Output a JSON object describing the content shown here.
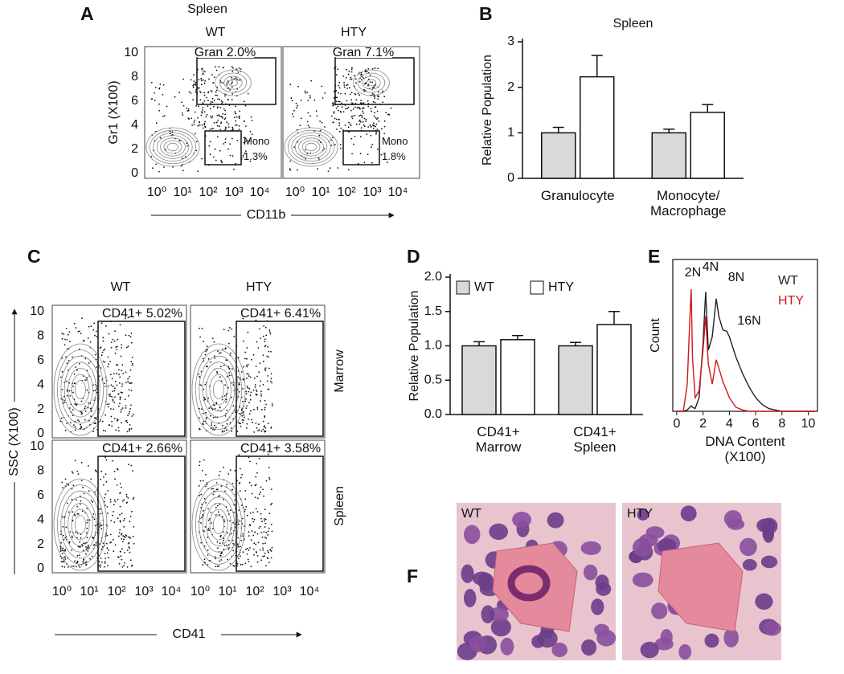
{
  "panels": {
    "A": {
      "letter": "A",
      "title": "Spleen",
      "columns": [
        "WT",
        "HTY"
      ],
      "gates": [
        [
          "Gran 2.0%",
          "Mono\n1.3%"
        ],
        [
          "Gran 7.1%",
          "Mono\n1.8%"
        ]
      ],
      "ylabel": "Gr1 (X100)",
      "xlabel": "CD11b",
      "yticks": [
        10,
        8,
        6,
        4,
        2,
        0
      ],
      "xticks": [
        "10⁰",
        "10¹",
        "10²",
        "10³",
        "10⁴"
      ]
    },
    "B": {
      "letter": "B"
    },
    "C": {
      "letter": "C",
      "columns": [
        "WT",
        "HTY"
      ],
      "rows": [
        "Marrow",
        "Spleen"
      ],
      "gates": [
        [
          "CD41+ 5.02%",
          "CD41+ 6.41%"
        ],
        [
          "CD41+ 2.66%",
          "CD41+ 3.58%"
        ]
      ],
      "ylabel": "SSC (X100)",
      "xlabel": "CD41",
      "yticks": [
        10,
        8,
        6,
        4,
        2,
        0
      ],
      "xticks": [
        "10⁰",
        "10¹",
        "10²",
        "10³",
        "10⁴"
      ]
    },
    "D": {
      "letter": "D"
    },
    "E": {
      "letter": "E"
    },
    "F": {
      "letter": "F",
      "images": [
        "WT",
        "HTY"
      ]
    }
  },
  "chart_data": [
    {
      "type": "bar",
      "title": "Spleen",
      "ylabel": "Relative Population",
      "categories": [
        "Granulocyte",
        "Monocyte/\nMacrophage"
      ],
      "series": [
        {
          "color": "#d9d9d9",
          "values": [
            1,
            1
          ],
          "errors": [
            0.12,
            0.08
          ]
        },
        {
          "color": "#ffffff",
          "values": [
            2.23,
            1.45
          ],
          "errors": [
            0.47,
            0.17
          ]
        }
      ],
      "ylim": [
        0,
        3
      ],
      "yticks": [
        0,
        1,
        2,
        3
      ],
      "legend": false
    },
    {
      "type": "bar",
      "ylabel": "Relative Population",
      "categories": [
        "CD41+\nMarrow",
        "CD41+\nSpleen"
      ],
      "series": [
        {
          "name": "WT",
          "color": "#d9d9d9",
          "values": [
            1.0,
            1.0
          ],
          "errors": [
            0.06,
            0.05
          ]
        },
        {
          "name": "HTY",
          "color": "#ffffff",
          "values": [
            1.09,
            1.31
          ],
          "errors": [
            0.06,
            0.19
          ]
        }
      ],
      "ylim": [
        0,
        2
      ],
      "yticks": [
        {
          "value": 0,
          "label": "0.0"
        },
        {
          "value": 0.5,
          "label": "0.5"
        },
        {
          "value": 1,
          "label": "1.0"
        },
        {
          "value": 1.5,
          "label": "1.5"
        },
        {
          "value": 2,
          "label": "2.0"
        }
      ],
      "legend": true
    },
    {
      "type": "line",
      "xlabel": "DNA Content\n(X100)",
      "ylabel": "Count",
      "annotations": [
        "2N",
        "4N",
        "8N",
        "16N"
      ],
      "x": [
        0,
        0.5,
        0.8,
        1.0,
        1.1,
        1.2,
        1.4,
        1.7,
        2.0,
        2.2,
        2.4,
        2.7,
        3.0,
        3.2,
        3.5,
        3.8,
        4.0,
        4.5,
        5.0,
        5.5,
        6.0,
        6.5,
        7.0,
        7.5,
        8.0,
        9.0,
        10.0,
        10.5
      ],
      "series": [
        {
          "name": "WT",
          "color": "#222222",
          "values": [
            0,
            0,
            1,
            3,
            4,
            3,
            2,
            10,
            50,
            88,
            45,
            55,
            83,
            70,
            60,
            59,
            55,
            40,
            28,
            18,
            10,
            5,
            2,
            1,
            0,
            0,
            0,
            0
          ]
        },
        {
          "name": "HTY",
          "color": "#d0161e",
          "values": [
            0,
            0,
            20,
            70,
            90,
            40,
            10,
            15,
            45,
            70,
            35,
            20,
            38,
            32,
            22,
            15,
            10,
            3,
            1,
            0,
            0,
            0,
            0,
            0,
            0,
            0,
            0,
            0
          ]
        }
      ],
      "xlim": [
        -0.3,
        10.7
      ],
      "ylim": [
        0,
        100
      ],
      "xticks": [
        0,
        2,
        4,
        6,
        8,
        10
      ],
      "legend": true
    }
  ]
}
